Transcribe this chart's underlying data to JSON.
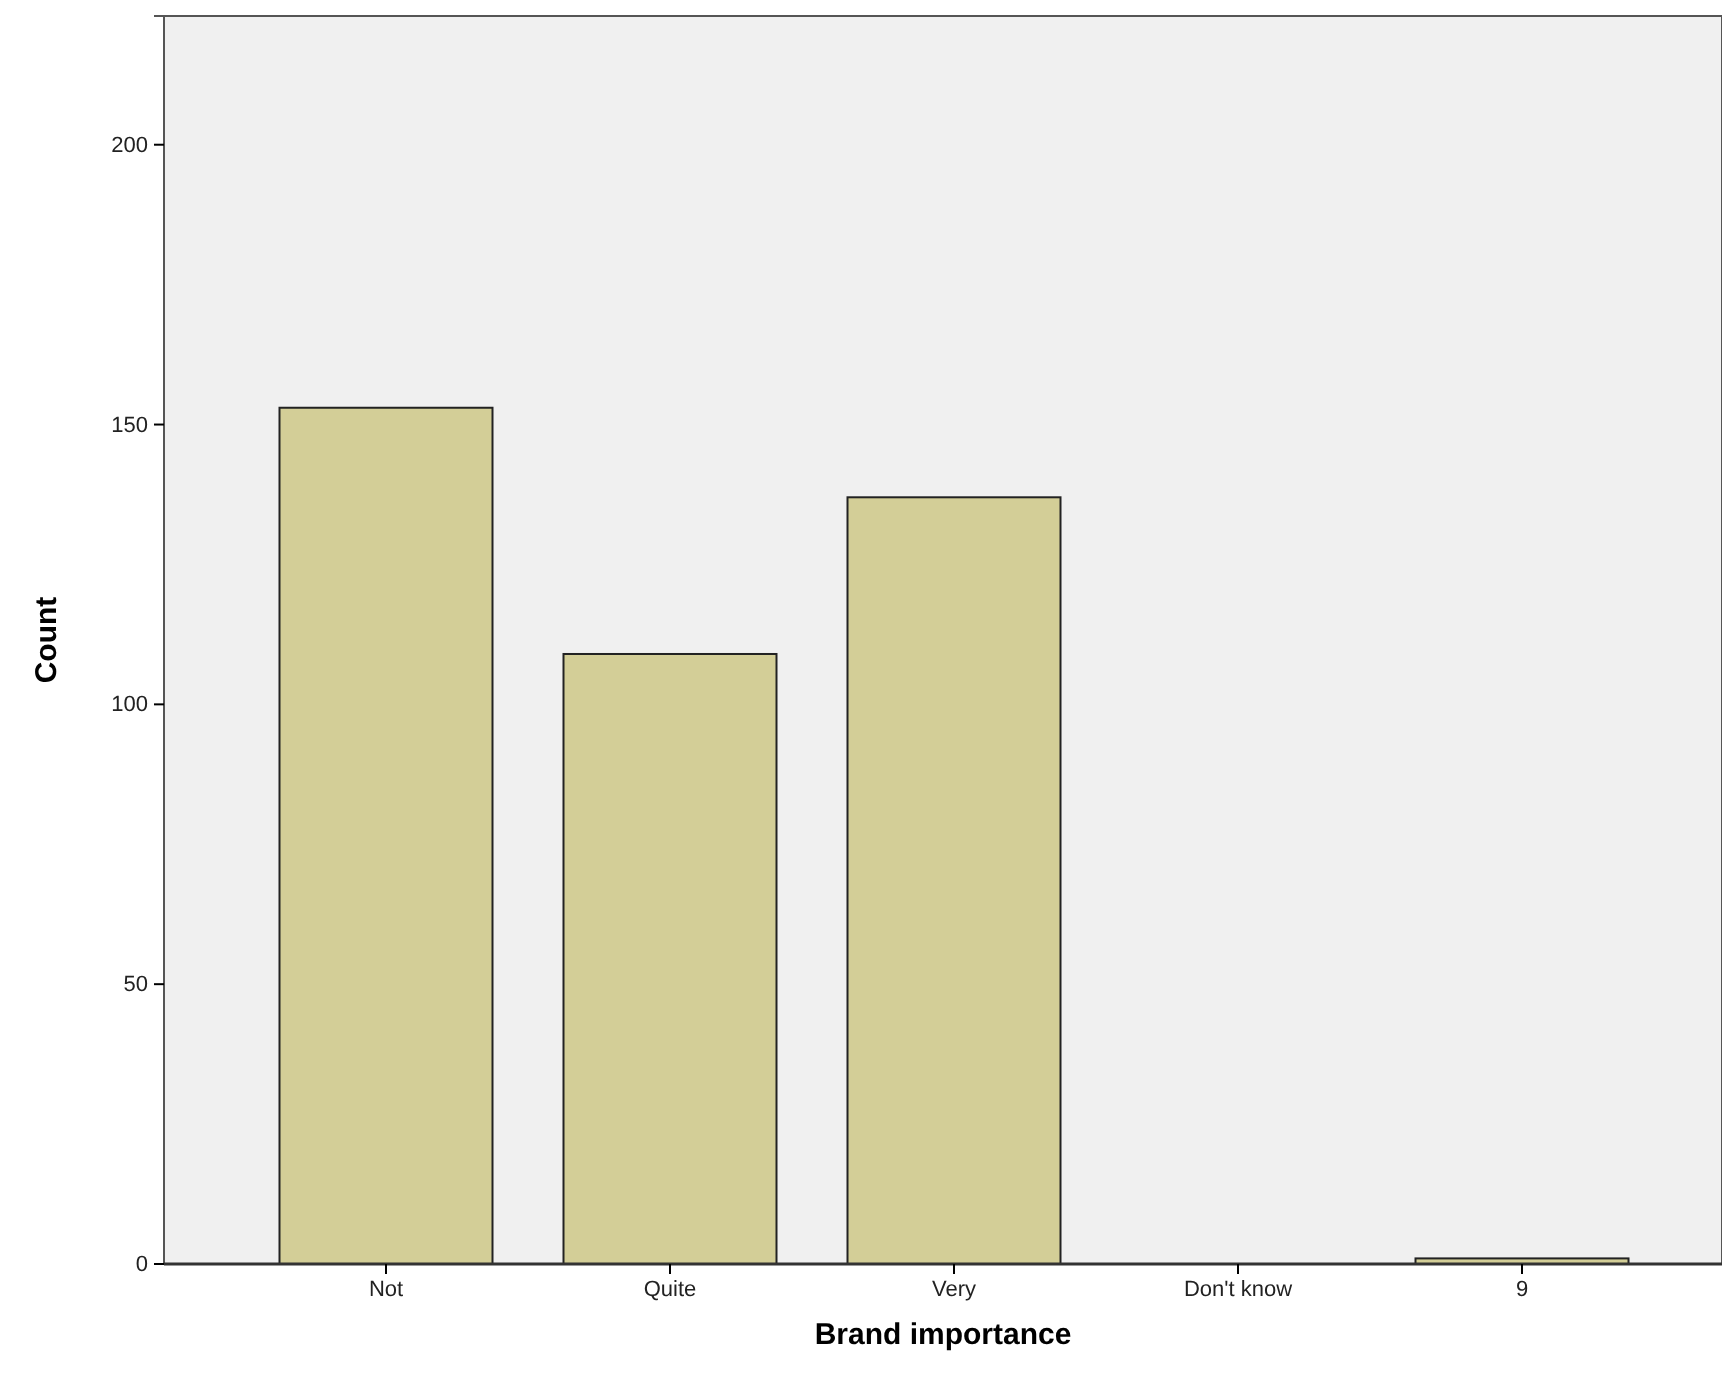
{
  "chart_data": {
    "type": "bar",
    "xlabel": "Brand importance",
    "ylabel": "Count",
    "categories": [
      "Not",
      "Quite",
      "Very",
      "Don't know",
      "9"
    ],
    "values": [
      153,
      109,
      137,
      0,
      1
    ],
    "color": "#d3ce97",
    "ylim": [
      0,
      223
    ],
    "yticks": [
      0,
      50,
      100,
      150,
      200
    ],
    "grid": false
  }
}
